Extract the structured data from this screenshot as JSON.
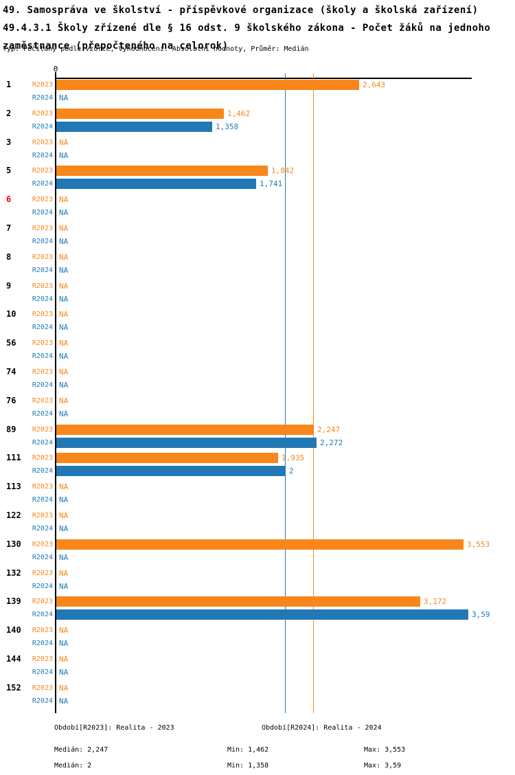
{
  "header": {
    "title_line1": "49. Samospráva ve školství - příspěvkové organizace (školy a školská zařízení)",
    "title_line2": "49.4.3.1 Školy zřízené dle § 16 odst. 9 školského zákona - Počet žáků na jednoho",
    "title_line3": "zaměstnance (přepočteného na celorok)",
    "type_line": "Typ: Počítaný podle vzorce, Vyhodnocení: Absolutní hodnoty, Průměr: Medián"
  },
  "colors": {
    "r2023": "#F8861B",
    "r2024": "#2178B4",
    "alert_category": "#ED0000",
    "axis": "#000000"
  },
  "chart_data": {
    "type": "bar",
    "orientation": "horizontal",
    "axis": {
      "zero_label": "0",
      "xlim": [
        0,
        3.63
      ]
    },
    "series_labels": {
      "r2023": "R2023",
      "r2024": "R2024"
    },
    "na_label": "NA",
    "rows": [
      {
        "category": "1",
        "alert": false,
        "r2023": 2.643,
        "r2023_label": "2,643",
        "r2024": null,
        "r2024_label": "NA"
      },
      {
        "category": "2",
        "alert": false,
        "r2023": 1.462,
        "r2023_label": "1,462",
        "r2024": 1.358,
        "r2024_label": "1,358"
      },
      {
        "category": "3",
        "alert": false,
        "r2023": null,
        "r2023_label": "NA",
        "r2024": null,
        "r2024_label": "NA"
      },
      {
        "category": "5",
        "alert": false,
        "r2023": 1.842,
        "r2023_label": "1,842",
        "r2024": 1.741,
        "r2024_label": "1,741"
      },
      {
        "category": "6",
        "alert": true,
        "r2023": null,
        "r2023_label": "NA",
        "r2024": null,
        "r2024_label": "NA"
      },
      {
        "category": "7",
        "alert": false,
        "r2023": null,
        "r2023_label": "NA",
        "r2024": null,
        "r2024_label": "NA"
      },
      {
        "category": "8",
        "alert": false,
        "r2023": null,
        "r2023_label": "NA",
        "r2024": null,
        "r2024_label": "NA"
      },
      {
        "category": "9",
        "alert": false,
        "r2023": null,
        "r2023_label": "NA",
        "r2024": null,
        "r2024_label": "NA"
      },
      {
        "category": "10",
        "alert": false,
        "r2023": null,
        "r2023_label": "NA",
        "r2024": null,
        "r2024_label": "NA"
      },
      {
        "category": "56",
        "alert": false,
        "r2023": null,
        "r2023_label": "NA",
        "r2024": null,
        "r2024_label": "NA"
      },
      {
        "category": "74",
        "alert": false,
        "r2023": null,
        "r2023_label": "NA",
        "r2024": null,
        "r2024_label": "NA"
      },
      {
        "category": "76",
        "alert": false,
        "r2023": null,
        "r2023_label": "NA",
        "r2024": null,
        "r2024_label": "NA"
      },
      {
        "category": "89",
        "alert": false,
        "r2023": 2.247,
        "r2023_label": "2,247",
        "r2024": 2.272,
        "r2024_label": "2,272"
      },
      {
        "category": "111",
        "alert": false,
        "r2023": 1.935,
        "r2023_label": "1,935",
        "r2024": 2.0,
        "r2024_label": "2"
      },
      {
        "category": "113",
        "alert": false,
        "r2023": null,
        "r2023_label": "NA",
        "r2024": null,
        "r2024_label": "NA"
      },
      {
        "category": "122",
        "alert": false,
        "r2023": null,
        "r2023_label": "NA",
        "r2024": null,
        "r2024_label": "NA"
      },
      {
        "category": "130",
        "alert": false,
        "r2023": 3.553,
        "r2023_label": "3,553",
        "r2024": null,
        "r2024_label": "NA"
      },
      {
        "category": "132",
        "alert": false,
        "r2023": null,
        "r2023_label": "NA",
        "r2024": null,
        "r2024_label": "NA"
      },
      {
        "category": "139",
        "alert": false,
        "r2023": 3.172,
        "r2023_label": "3,172",
        "r2024": 3.59,
        "r2024_label": "3,59"
      },
      {
        "category": "140",
        "alert": false,
        "r2023": null,
        "r2023_label": "NA",
        "r2024": null,
        "r2024_label": "NA"
      },
      {
        "category": "144",
        "alert": false,
        "r2023": null,
        "r2023_label": "NA",
        "r2024": null,
        "r2024_label": "NA"
      },
      {
        "category": "152",
        "alert": false,
        "r2023": null,
        "r2023_label": "NA",
        "r2024": null,
        "r2024_label": "NA"
      }
    ],
    "median_lines": [
      {
        "series": "R2023",
        "value": 2.247
      },
      {
        "series": "R2024",
        "value": 2.0
      }
    ]
  },
  "legend": {
    "r2023_period": "Období[R2023]: Realita - 2023",
    "r2024_period": "Období[R2024]: Realita - 2024",
    "r2023_stats": {
      "median": "Medián: 2,247",
      "min": "Min: 1,462",
      "max": "Max: 3,553"
    },
    "r2024_stats": {
      "median": "Medián: 2",
      "min": "Min: 1,358",
      "max": "Max: 3,59"
    }
  }
}
